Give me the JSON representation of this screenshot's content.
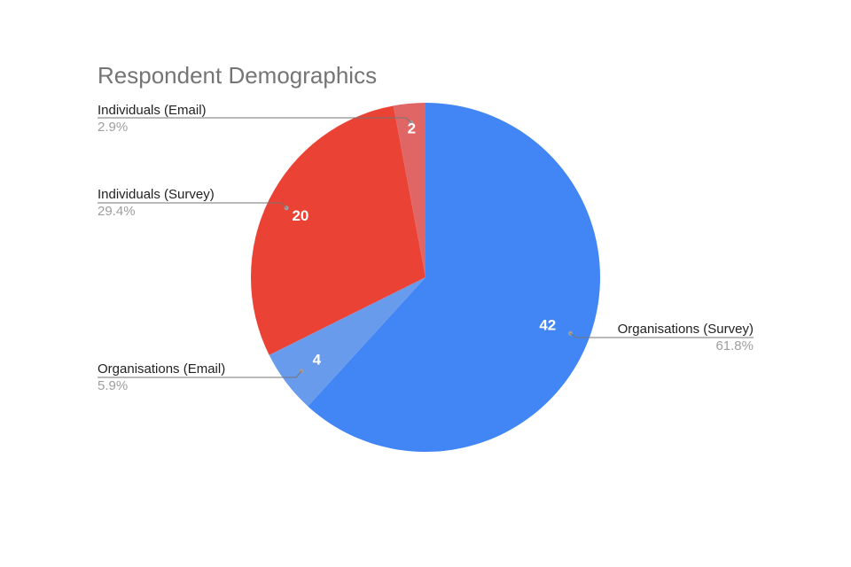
{
  "chart_data": {
    "type": "pie",
    "title": "Respondent Demographics",
    "slices": [
      {
        "label": "Organisations (Survey)",
        "value": 42,
        "percent": "61.8%",
        "color": "#4285f4"
      },
      {
        "label": "Organisations (Email)",
        "value": 4,
        "percent": "5.9%",
        "color": "#699bed"
      },
      {
        "label": "Individuals (Survey)",
        "value": 20,
        "percent": "29.4%",
        "color": "#ea4335"
      },
      {
        "label": "Individuals (Email)",
        "value": 2,
        "percent": "2.9%",
        "color": "#e06666"
      }
    ],
    "start_angle": "12 o'clock",
    "direction": "clockwise",
    "legend": "labeled"
  }
}
